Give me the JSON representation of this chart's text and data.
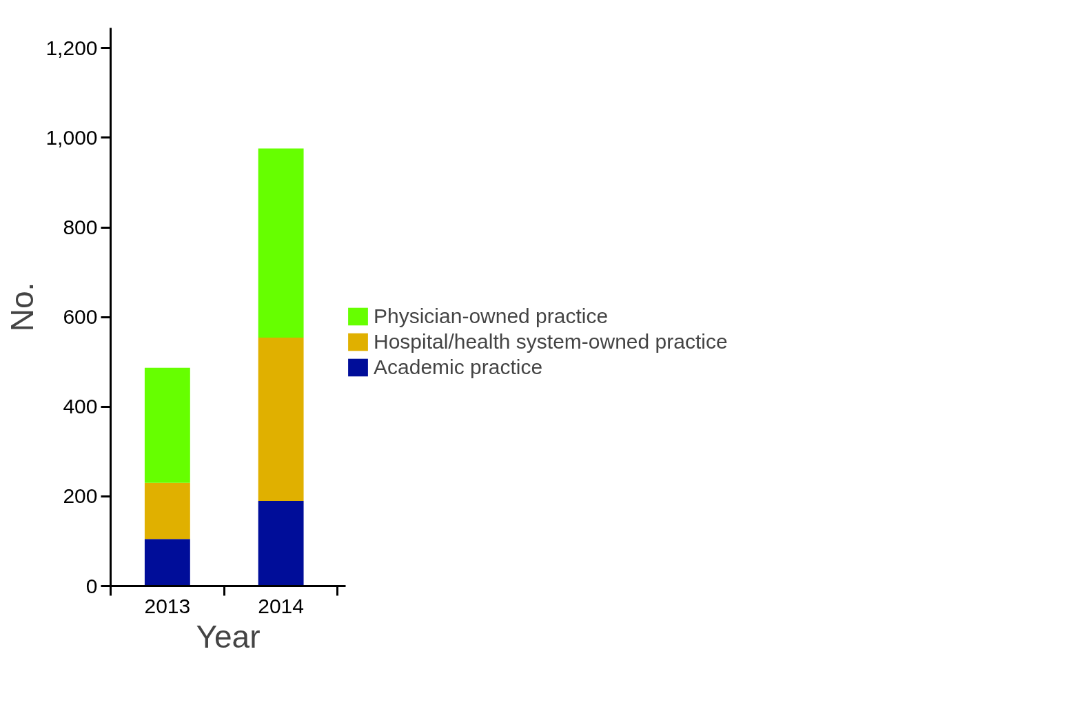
{
  "chart_data": {
    "type": "bar",
    "stacked": true,
    "xlabel": "Year",
    "ylabel": "No.",
    "categories": [
      "2013",
      "2014"
    ],
    "series": [
      {
        "name": "Academic practice",
        "color": "#000d99",
        "values": [
          105,
          190
        ]
      },
      {
        "name": "Hospital/health system-owned practice",
        "color": "#e0b000",
        "values": [
          125,
          364
        ]
      },
      {
        "name": "Physician-owned practice",
        "color": "#66ff00",
        "values": [
          257,
          422
        ]
      }
    ],
    "ylim": [
      0,
      1245
    ],
    "yticks": [
      0,
      200,
      400,
      600,
      800,
      {
        "value": 1000,
        "label": "1,000"
      },
      {
        "value": 1200,
        "label": "1,200"
      }
    ],
    "legend": "right",
    "grid": false
  }
}
